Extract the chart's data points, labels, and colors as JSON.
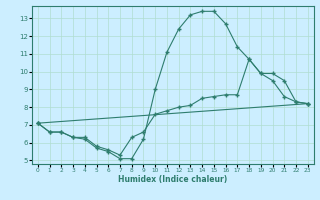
{
  "xlabel": "Humidex (Indice chaleur)",
  "bg_color": "#cceeff",
  "line_color": "#2e7d6e",
  "grid_color": "#b0ddd0",
  "xlim": [
    -0.5,
    23.5
  ],
  "ylim": [
    4.8,
    13.7
  ],
  "yticks": [
    5,
    6,
    7,
    8,
    9,
    10,
    11,
    12,
    13
  ],
  "xticks": [
    0,
    1,
    2,
    3,
    4,
    5,
    6,
    7,
    8,
    9,
    10,
    11,
    12,
    13,
    14,
    15,
    16,
    17,
    18,
    19,
    20,
    21,
    22,
    23
  ],
  "line1_x": [
    0,
    1,
    2,
    3,
    4,
    5,
    6,
    7,
    8,
    9,
    10,
    11,
    12,
    13,
    14,
    15,
    16,
    17,
    18,
    19,
    20,
    21,
    22,
    23
  ],
  "line1_y": [
    7.1,
    6.6,
    6.6,
    6.3,
    6.2,
    5.7,
    5.5,
    5.1,
    5.1,
    6.2,
    9.0,
    11.1,
    12.4,
    13.2,
    13.4,
    13.4,
    12.7,
    11.4,
    10.7,
    9.9,
    9.5,
    8.6,
    8.3,
    8.2
  ],
  "line2_x": [
    0,
    23
  ],
  "line2_y": [
    7.1,
    8.2
  ],
  "line3_x": [
    0,
    1,
    2,
    3,
    4,
    5,
    6,
    7,
    8,
    9,
    10,
    11,
    12,
    13,
    14,
    15,
    16,
    17,
    18,
    19,
    20,
    21,
    22,
    23
  ],
  "line3_y": [
    7.1,
    6.6,
    6.6,
    6.3,
    6.3,
    5.8,
    5.6,
    5.3,
    6.3,
    6.6,
    7.6,
    7.8,
    8.0,
    8.1,
    8.5,
    8.6,
    8.7,
    8.7,
    10.7,
    9.9,
    9.9,
    9.5,
    8.3,
    8.2
  ]
}
